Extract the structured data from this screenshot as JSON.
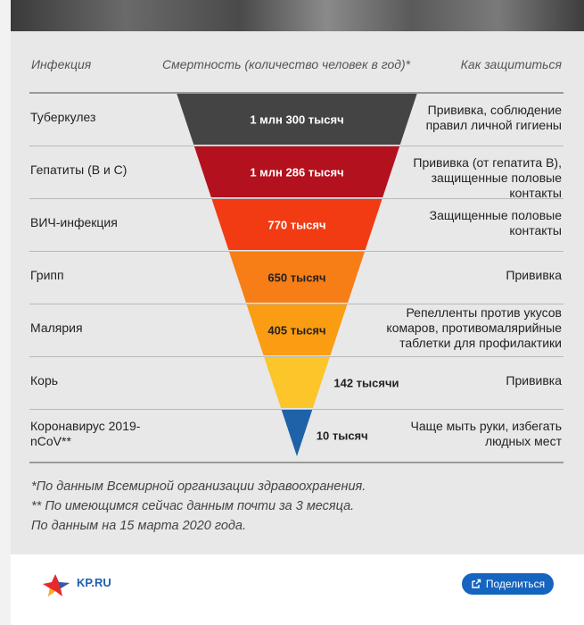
{
  "headers": {
    "infection": "Инфекция",
    "mortality": "Смертность (количество человек в год)*",
    "protection": "Как защититься"
  },
  "rows": [
    {
      "name": "Туберкулез",
      "value_label": "1 млн 300 тысяч",
      "protection": "Прививка, соблюдение правил личной гигиены",
      "color": "#444444"
    },
    {
      "name": "Гепатиты (В и С)",
      "value_label": "1 млн 286 тысяч",
      "protection": "Прививка (от гепатита В), защищенные половые контакты",
      "color": "#b3111e"
    },
    {
      "name": "ВИЧ-инфекция",
      "value_label": "770 тысяч",
      "protection": "Защищенные половые контакты",
      "color": "#f23b12"
    },
    {
      "name": "Грипп",
      "value_label": "650 тысяч",
      "protection": "Прививка",
      "color": "#f77d16"
    },
    {
      "name": "Малярия",
      "value_label": "405 тысяч",
      "protection": "Репелленты против укусов комаров, противомалярийные таблетки для профилактики",
      "color": "#fb9d12"
    },
    {
      "name": "Корь",
      "value_label": "142 тысячи",
      "protection": "Прививка",
      "color": "#fcc52a"
    },
    {
      "name": "Коронавирус 2019-nCoV**",
      "value_label": "10 тысяч",
      "protection": "Чаще мыть руки, избегать людных мест",
      "color": "#1e63a8"
    }
  ],
  "footnotes": [
    "*По данным Всемирной организации здравоохранения.",
    "** По имеющимся сейчас данным почти за 3 месяца.",
    "По данным на 15 марта 2020 года."
  ],
  "logo_text": "KP.RU",
  "share_label": "Поделиться",
  "chart_data": {
    "type": "bar",
    "categories": [
      "Туберкулез",
      "Гепатиты (В и С)",
      "ВИЧ-инфекция",
      "Грипп",
      "Малярия",
      "Корь",
      "Коронавирус 2019-nCoV**"
    ],
    "values": [
      1300000,
      1286000,
      770000,
      650000,
      405000,
      142000,
      10000
    ],
    "title": "",
    "ylabel": "Смертность (количество человек в год)*"
  }
}
